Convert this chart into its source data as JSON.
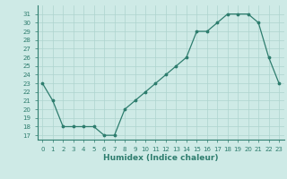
{
  "x": [
    0,
    1,
    2,
    3,
    4,
    5,
    6,
    7,
    8,
    9,
    10,
    11,
    12,
    13,
    14,
    15,
    16,
    17,
    18,
    19,
    20,
    21,
    22,
    23
  ],
  "y": [
    23,
    21,
    18,
    18,
    18,
    18,
    17,
    17,
    20,
    21,
    22,
    23,
    24,
    25,
    26,
    29,
    29,
    30,
    31,
    31,
    31,
    30,
    26,
    23
  ],
  "xlabel": "Humidex (Indice chaleur)",
  "ylim_min": 16.5,
  "ylim_max": 32.0,
  "yticks": [
    17,
    18,
    19,
    20,
    21,
    22,
    23,
    24,
    25,
    26,
    27,
    28,
    29,
    30,
    31
  ],
  "xticks": [
    0,
    1,
    2,
    3,
    4,
    5,
    6,
    7,
    8,
    9,
    10,
    11,
    12,
    13,
    14,
    15,
    16,
    17,
    18,
    19,
    20,
    21,
    22,
    23
  ],
  "line_color": "#2e7d6e",
  "bg_color": "#ceeae6",
  "grid_color": "#aed4cf"
}
